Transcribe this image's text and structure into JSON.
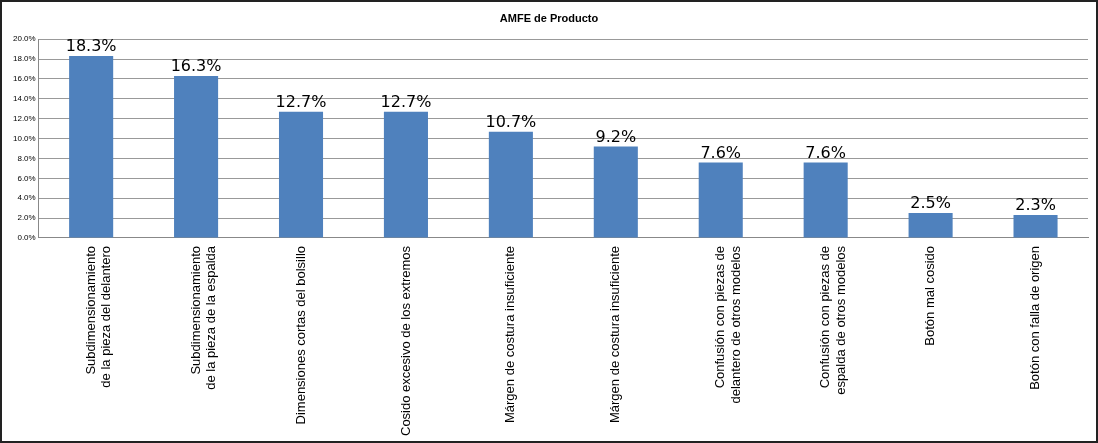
{
  "chart_data": {
    "type": "bar",
    "title": "AMFE de Producto",
    "categories": [
      "Subdimensionamiento de la pieza del delantero",
      "Subdimensionamiento de la pieza de la espalda",
      "Dimensiones cortas del bolsillo",
      "Cosido excesivo de los extremos",
      "Márgen de costura insuficiente",
      "Márgen de costura insuficiente",
      "Confusión con piezas de delantero de otros modelos",
      "Confusión con piezas de espalda de otros modelos",
      "Botón mal cosido",
      "Botón con falla de origen"
    ],
    "values": [
      18.3,
      16.3,
      12.7,
      12.7,
      10.7,
      9.2,
      7.6,
      7.6,
      2.5,
      2.3
    ],
    "value_labels": [
      "18.3%",
      "16.3%",
      "12.7%",
      "12.7%",
      "10.7%",
      "9.2%",
      "7.6%",
      "7.6%",
      "2.5%",
      "2.3%"
    ],
    "color": "#4f81bd",
    "ylim": [
      0,
      20
    ],
    "yticks": [
      {
        "value": 0,
        "label": "0.0%"
      },
      {
        "value": 2,
        "label": "2.0%"
      },
      {
        "value": 4,
        "label": "4.0%"
      },
      {
        "value": 6,
        "label": "6.0%"
      },
      {
        "value": 8,
        "label": "8.0%"
      },
      {
        "value": 10,
        "label": "10.0%"
      },
      {
        "value": 12,
        "label": "12.0%"
      },
      {
        "value": 14,
        "label": "14.0%"
      },
      {
        "value": 16,
        "label": "16.0%"
      },
      {
        "value": 18,
        "label": "18.0%"
      },
      {
        "value": 20,
        "label": "20.0%"
      }
    ],
    "grid": "y",
    "legend": false
  }
}
